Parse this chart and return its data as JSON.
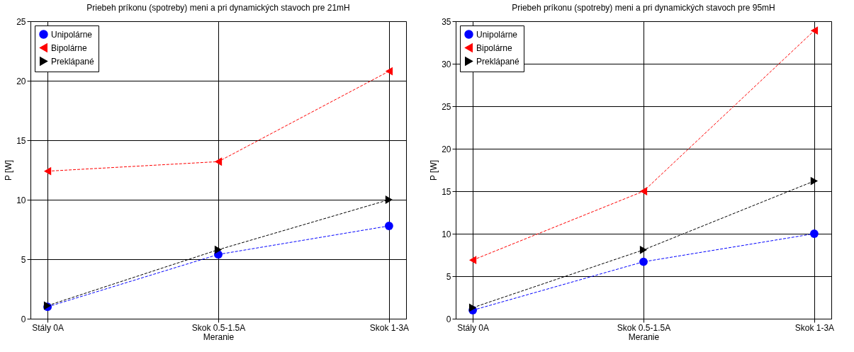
{
  "chart_data": [
    {
      "type": "line",
      "title": "Priebeh príkonu (spotreby) meni  a pri dynamických stavoch pre 21mH",
      "xlabel": "Meranie",
      "ylabel": "P [W]",
      "categories": [
        "Stály 0A",
        "Skok 0.5-1.5A",
        "Skok 1-3A"
      ],
      "ylim": [
        0,
        25
      ],
      "yticks": [
        0,
        5,
        10,
        15,
        20,
        25
      ],
      "grid": true,
      "legend": "top left",
      "line_style": "dashed",
      "series": [
        {
          "name": "Unipolárne",
          "color": "#0000ff",
          "marker": "circle",
          "values": [
            1.0,
            5.4,
            7.8
          ]
        },
        {
          "name": "Bipolárne",
          "color": "#ff0000",
          "marker": "triangle-left",
          "values": [
            12.4,
            13.2,
            20.8
          ]
        },
        {
          "name": "Preklápané",
          "color": "#000000",
          "marker": "triangle-right",
          "values": [
            1.1,
            5.8,
            10.0
          ]
        }
      ]
    },
    {
      "type": "line",
      "title": "Priebeh príkonu (spotreby) meni  a pri dynamických stavoch pre 95mH",
      "xlabel": "Meranie",
      "ylabel": "P [W]",
      "categories": [
        "Stály 0A",
        "Skok 0.5-1.5A",
        "Skok 1-3A"
      ],
      "ylim": [
        0,
        35
      ],
      "yticks": [
        0,
        5,
        10,
        15,
        20,
        25,
        30,
        35
      ],
      "grid": true,
      "legend": "top left",
      "line_style": "dashed",
      "series": [
        {
          "name": "Unipolárne",
          "color": "#0000ff",
          "marker": "circle",
          "values": [
            1.0,
            6.7,
            10.0
          ]
        },
        {
          "name": "Bipolárne",
          "color": "#ff0000",
          "marker": "triangle-left",
          "values": [
            6.9,
            15.0,
            33.9
          ]
        },
        {
          "name": "Preklápané",
          "color": "#000000",
          "marker": "triangle-right",
          "values": [
            1.3,
            8.1,
            16.2
          ]
        }
      ]
    }
  ]
}
